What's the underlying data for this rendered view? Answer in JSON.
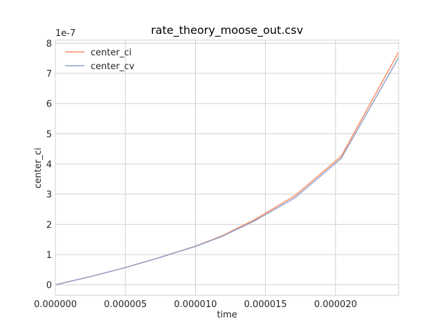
{
  "chart_data": {
    "type": "line",
    "title": "rate_theory_moose_out.csv",
    "xlabel": "time",
    "ylabel": "center_ci",
    "y_offset_text": "1e-7",
    "xlim": [
      0,
      2.451e-05
    ],
    "ylim": [
      -0.35,
      8.1
    ],
    "y_scale_factor": 1e-07,
    "grid": true,
    "legend_position": "top-left",
    "x_ticks": [
      0,
      5e-06,
      1e-05,
      1.5e-05,
      2e-05
    ],
    "x_tick_labels": [
      "0.000000",
      "0.000005",
      "0.000010",
      "0.000015",
      "0.000020"
    ],
    "y_ticks": [
      0,
      1,
      2,
      3,
      4,
      5,
      6,
      7,
      8
    ],
    "y_tick_labels": [
      "0",
      "1",
      "2",
      "3",
      "4",
      "5",
      "6",
      "7",
      "8"
    ],
    "x": [
      0,
      2.5e-06,
      5e-06,
      7.5e-06,
      1e-05,
      1.19e-05,
      1.42e-05,
      1.71e-05,
      2.04e-05,
      2.45e-05
    ],
    "series": [
      {
        "name": "center_ci",
        "color": "#fc8d62",
        "values": [
          0,
          0.27,
          0.57,
          0.91,
          1.28,
          1.62,
          2.15,
          2.95,
          4.25,
          7.7
        ]
      },
      {
        "name": "center_cv",
        "color": "#8da0cb",
        "values": [
          0,
          0.27,
          0.57,
          0.91,
          1.27,
          1.6,
          2.11,
          2.88,
          4.18,
          7.52
        ]
      }
    ]
  }
}
